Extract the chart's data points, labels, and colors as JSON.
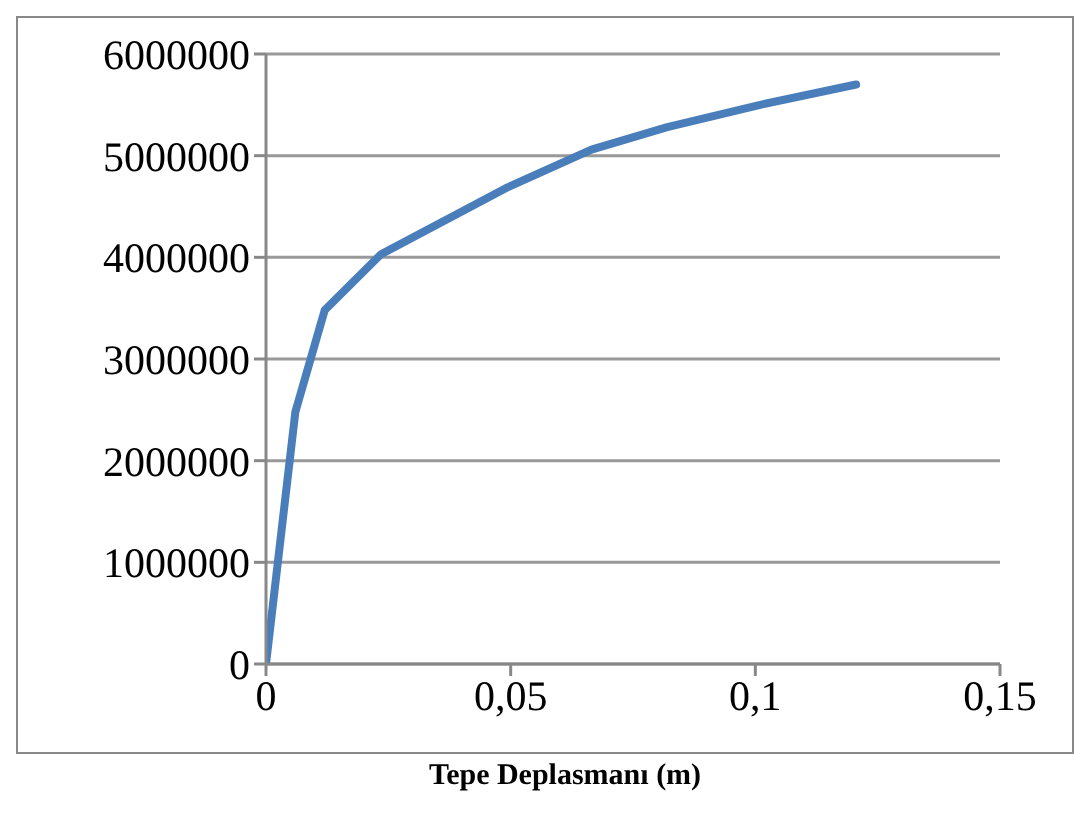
{
  "chart_data": {
    "type": "line",
    "xlabel": "Tepe Deplasmanı (m)",
    "x": [
      0,
      0.006,
      0.012,
      0.0235,
      0.049,
      0.0665,
      0.082,
      0.101,
      0.1206
    ],
    "series": [
      {
        "color": "#4a7ebb",
        "values": [
          0,
          2480000,
          3480000,
          4030000,
          4680000,
          5060000,
          5280000,
          5500000,
          5700000
        ]
      }
    ],
    "xlim": [
      0,
      0.15
    ],
    "xticks": [
      0,
      {
        "value": 0.05,
        "label": "0,05"
      },
      {
        "value": 0.1,
        "label": "0,1"
      },
      {
        "value": 0.15,
        "label": "0,15"
      }
    ],
    "ylim": [
      0,
      6000000
    ],
    "yticks": [
      0,
      1000000,
      2000000,
      3000000,
      4000000,
      5000000,
      6000000
    ],
    "grid": "y",
    "legend": false,
    "marker": "none",
    "line_style": "solid"
  }
}
